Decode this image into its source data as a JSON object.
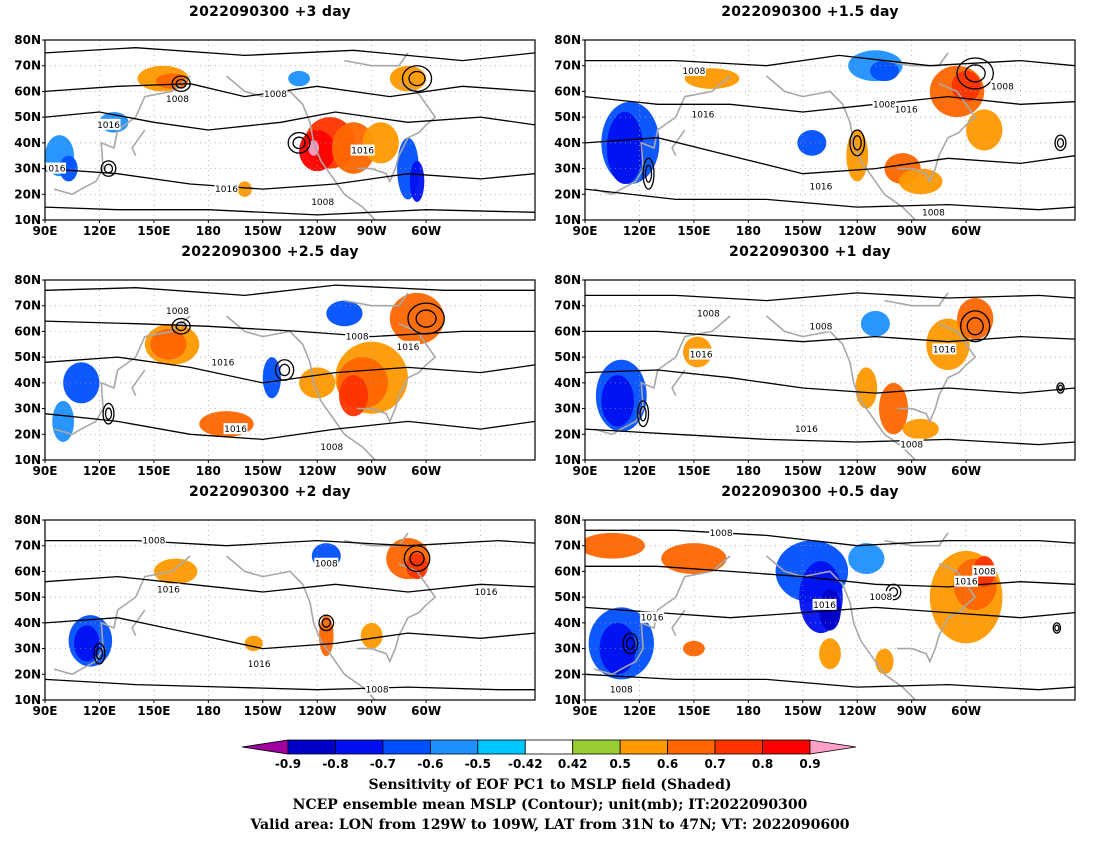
{
  "figure": {
    "panels": [
      {
        "title": "2022090300 +3 day"
      },
      {
        "title": "2022090300 +1.5 day"
      },
      {
        "title": "2022090300 +2.5 day"
      },
      {
        "title": "2022090300 +1 day"
      },
      {
        "title": "2022090300 +2 day"
      },
      {
        "title": "2022090300 +0.5 day"
      }
    ],
    "lat_labels": [
      "80N",
      "70N",
      "60N",
      "50N",
      "40N",
      "30N",
      "20N",
      "10N"
    ],
    "lon_labels": [
      "90E",
      "120E",
      "150E",
      "180",
      "150W",
      "120W",
      "90W",
      "60W"
    ],
    "contour_labels": [
      "1008",
      "1016"
    ],
    "colorbar": {
      "ticks": [
        "-0.9",
        "-0.8",
        "-0.7",
        "-0.6",
        "-0.5",
        "-0.42",
        "0.42",
        "0.5",
        "0.6",
        "0.7",
        "0.8",
        "0.9"
      ],
      "colors": [
        "#a000a0",
        "#0000c8",
        "#0010f0",
        "#0050ff",
        "#1e90ff",
        "#00c8ff",
        "#ffffff",
        "#9acd32",
        "#ff9900",
        "#ff6600",
        "#ff3300",
        "#ff0000",
        "#ffa0c8"
      ]
    },
    "captions": [
      "Sensitivity of EOF PC1 to MSLP field (Shaded)",
      "NCEP ensemble mean MSLP (Contour); unit(mb); IT:2022090300",
      "Valid area: LON from 129W to 109W, LAT from 31N to 47N; VT: 2022090600"
    ]
  }
}
